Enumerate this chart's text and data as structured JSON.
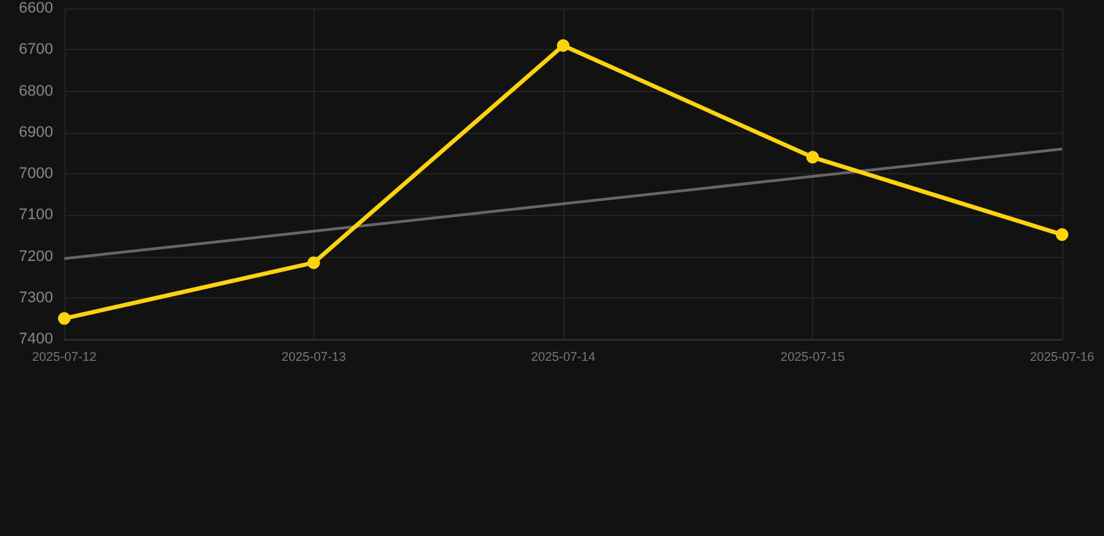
{
  "chart_data": {
    "type": "line",
    "categories": [
      "2025-07-12",
      "2025-07-13",
      "2025-07-14",
      "2025-07-15",
      "2025-07-16"
    ],
    "series": [
      {
        "color": "#ffd30f",
        "values": [
          7350,
          7215,
          6690,
          6960,
          7147
        ],
        "marker": "circle"
      },
      {
        "type": "line",
        "color": "#666666",
        "values": [
          7205,
          null,
          null,
          null,
          6940
        ],
        "marker": "none"
      }
    ],
    "ylim": [
      7400,
      6600
    ],
    "yticks": [
      6600,
      6700,
      6800,
      6900,
      7000,
      7100,
      7200,
      7300,
      7400
    ],
    "grid": true
  }
}
